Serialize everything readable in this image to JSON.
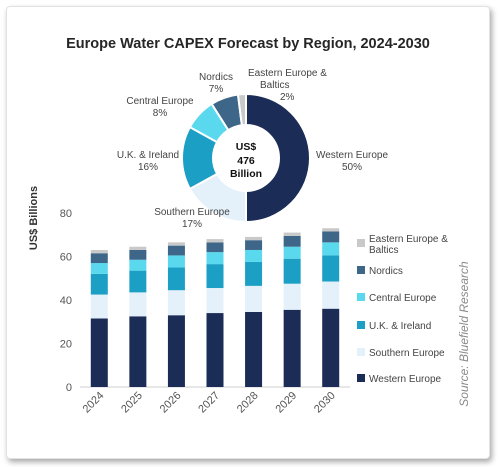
{
  "chart_data": [
    {
      "type": "bar",
      "subtype": "stacked",
      "title": "Europe Water CAPEX Forecast by Region, 2024-2030",
      "ylabel": "US$ Billions",
      "ylim": [
        0,
        80
      ],
      "yticks": [
        "0",
        "20",
        "40",
        "60",
        "80"
      ],
      "categories": [
        "2024",
        "2025",
        "2026",
        "2027",
        "2028",
        "2029",
        "2030"
      ],
      "grid": false,
      "legend_position": "right",
      "series": [
        {
          "name": "Western Europe",
          "color": "#1b2c56",
          "values": [
            31.5,
            32.5,
            33,
            34,
            34.5,
            35.5,
            36
          ]
        },
        {
          "name": "Southern Europe",
          "color": "#e4f1fa",
          "values": [
            11,
            11,
            11.5,
            11.5,
            12,
            12,
            12.5
          ]
        },
        {
          "name": "U.K. & Ireland",
          "color": "#1b9fc4",
          "values": [
            9.5,
            10,
            10.5,
            11,
            11,
            11.5,
            12
          ]
        },
        {
          "name": "Central Europe",
          "color": "#5ad8ee",
          "values": [
            5,
            5,
            5.5,
            5.5,
            5.5,
            5.5,
            6
          ]
        },
        {
          "name": "Nordics",
          "color": "#3e6688",
          "values": [
            4.5,
            4.5,
            4.5,
            4.5,
            4.5,
            5,
            5
          ]
        },
        {
          "name": "Eastern Europe & Baltics",
          "color": "#c9c9c9",
          "values": [
            1.5,
            1.5,
            1.5,
            1.5,
            1.5,
            1.5,
            1.5
          ]
        }
      ]
    },
    {
      "type": "pie",
      "subtype": "donut",
      "center_label": [
        "US$",
        "476",
        "Billion"
      ],
      "slices": [
        {
          "label": "Western Europe",
          "pct_label": "50%",
          "value": 50,
          "color": "#1b2c56"
        },
        {
          "label": "Southern Europe",
          "pct_label": "17%",
          "value": 17,
          "color": "#e4f1fa"
        },
        {
          "label": "U.K.  & Ireland",
          "pct_label": "16%",
          "value": 16,
          "color": "#1b9fc4"
        },
        {
          "label": "Central Europe",
          "pct_label": "8%",
          "value": 8,
          "color": "#5ad8ee"
        },
        {
          "label": "Nordics",
          "pct_label": "7%",
          "value": 7,
          "color": "#3e6688"
        },
        {
          "label": "Eastern Europe & Baltics",
          "pct_label": "2%",
          "value": 2,
          "color": "#c9c9c9"
        }
      ]
    }
  ],
  "source": "Source: Bluefield Research"
}
